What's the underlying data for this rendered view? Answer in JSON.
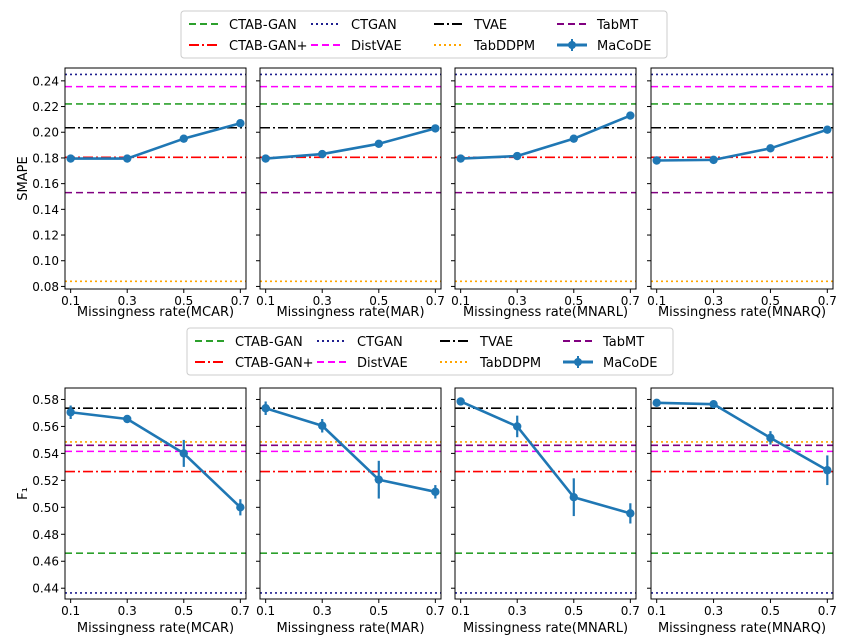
{
  "legend": {
    "entries": [
      {
        "label": "CTAB-GAN",
        "color": "#2ca02c",
        "dash": "7,4",
        "width": 2
      },
      {
        "label": "CTGAN",
        "color": "#1f1f8f",
        "dash": "2,3",
        "width": 2
      },
      {
        "label": "TVAE",
        "color": "#000000",
        "dash": "10,3,2,3",
        "width": 2
      },
      {
        "label": "TabMT",
        "color": "#800080",
        "dash": "7,4",
        "width": 2
      },
      {
        "label": "CTAB-GAN+",
        "color": "#ff0000",
        "dash": "10,3,2,3",
        "width": 2
      },
      {
        "label": "DistVAE",
        "color": "#ff00ff",
        "dash": "7,4",
        "width": 2
      },
      {
        "label": "TabDDPM",
        "color": "#ffa500",
        "dash": "2,3",
        "width": 2
      },
      {
        "label": "MaCoDE",
        "color": "#1f77b4",
        "dash": "",
        "width": 3,
        "marker": true
      }
    ]
  },
  "chart_data": [
    {
      "type": "line",
      "ylabel": "SMAPE",
      "ylim": [
        0.078,
        0.25
      ],
      "yticks": [
        0.08,
        0.1,
        0.12,
        0.14,
        0.16,
        0.18,
        0.2,
        0.22,
        0.24
      ],
      "ytick_labels": [
        "0.08",
        "0.10",
        "0.12",
        "0.14",
        "0.16",
        "0.18",
        "0.20",
        "0.22",
        "0.24"
      ],
      "xlim": [
        0.08,
        0.72
      ],
      "x": [
        0.1,
        0.3,
        0.5,
        0.7
      ],
      "xtick_labels": [
        "0.1",
        "0.3",
        "0.5",
        "0.7"
      ],
      "baselines": [
        {
          "name": "CTAB-GAN",
          "value": 0.222
        },
        {
          "name": "CTGAN",
          "value": 0.245
        },
        {
          "name": "TVAE",
          "value": 0.2035
        },
        {
          "name": "TabMT",
          "value": 0.153
        },
        {
          "name": "CTAB-GAN+",
          "value": 0.1805
        },
        {
          "name": "DistVAE",
          "value": 0.2355
        },
        {
          "name": "TabDDPM",
          "value": 0.084
        }
      ],
      "panels": [
        {
          "xlabel": "Missingness rate(MCAR)",
          "series": {
            "name": "MaCoDE",
            "values": [
              0.1795,
              0.1795,
              0.195,
              0.207
            ],
            "errors": [
              0.0015,
              0.0015,
              0.0015,
              0.002
            ]
          }
        },
        {
          "xlabel": "Missingness rate(MAR)",
          "series": {
            "name": "MaCoDE",
            "values": [
              0.1795,
              0.183,
              0.191,
              0.203
            ],
            "errors": [
              0.0012,
              0.0012,
              0.0015,
              0.0015
            ]
          }
        },
        {
          "xlabel": "Missingness rate(MNARL)",
          "series": {
            "name": "MaCoDE",
            "values": [
              0.1795,
              0.1815,
              0.195,
              0.213
            ],
            "errors": [
              0.0012,
              0.0015,
              0.0015,
              0.003
            ]
          }
        },
        {
          "xlabel": "Missingness rate(MNARQ)",
          "series": {
            "name": "MaCoDE",
            "values": [
              0.178,
              0.1785,
              0.1875,
              0.202
            ],
            "errors": [
              0.0015,
              0.0015,
              0.0015,
              0.0015
            ]
          }
        }
      ]
    },
    {
      "type": "line",
      "ylabel": "F₁",
      "ylim": [
        0.432,
        0.5885
      ],
      "yticks": [
        0.44,
        0.46,
        0.48,
        0.5,
        0.52,
        0.54,
        0.56,
        0.58
      ],
      "ytick_labels": [
        "0.44",
        "0.46",
        "0.48",
        "0.50",
        "0.52",
        "0.54",
        "0.56",
        "0.58"
      ],
      "xlim": [
        0.08,
        0.72
      ],
      "x": [
        0.1,
        0.3,
        0.5,
        0.7
      ],
      "xtick_labels": [
        "0.1",
        "0.3",
        "0.5",
        "0.7"
      ],
      "baselines": [
        {
          "name": "CTAB-GAN",
          "value": 0.466
        },
        {
          "name": "CTGAN",
          "value": 0.4365
        },
        {
          "name": "TVAE",
          "value": 0.5735
        },
        {
          "name": "TabMT",
          "value": 0.546
        },
        {
          "name": "CTAB-GAN+",
          "value": 0.5265
        },
        {
          "name": "DistVAE",
          "value": 0.5415
        },
        {
          "name": "TabDDPM",
          "value": 0.5485
        }
      ],
      "panels": [
        {
          "xlabel": "Missingness rate(MCAR)",
          "series": {
            "name": "MaCoDE",
            "values": [
              0.5705,
              0.5655,
              0.54,
              0.5
            ],
            "errors": [
              0.005,
              0.002,
              0.01,
              0.006
            ]
          }
        },
        {
          "xlabel": "Missingness rate(MAR)",
          "series": {
            "name": "MaCoDE",
            "values": [
              0.5735,
              0.5605,
              0.5205,
              0.5115
            ],
            "errors": [
              0.005,
              0.005,
              0.014,
              0.005
            ]
          }
        },
        {
          "xlabel": "Missingness rate(MNARL)",
          "series": {
            "name": "MaCoDE",
            "values": [
              0.5785,
              0.56,
              0.5075,
              0.4955
            ],
            "errors": [
              0.0015,
              0.008,
              0.014,
              0.0075
            ]
          }
        },
        {
          "xlabel": "Missingness rate(MNARQ)",
          "series": {
            "name": "MaCoDE",
            "values": [
              0.5775,
              0.5765,
              0.5515,
              0.5275
            ],
            "errors": [
              0.002,
              0.0015,
              0.005,
              0.011
            ]
          }
        }
      ]
    }
  ]
}
